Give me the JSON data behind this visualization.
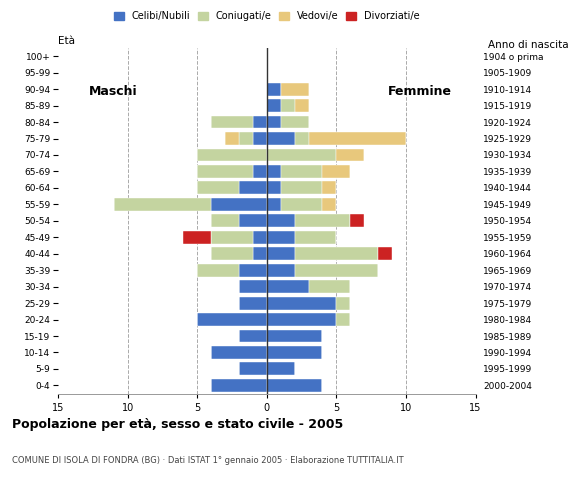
{
  "age_groups": [
    "0-4",
    "5-9",
    "10-14",
    "15-19",
    "20-24",
    "25-29",
    "30-34",
    "35-39",
    "40-44",
    "45-49",
    "50-54",
    "55-59",
    "60-64",
    "65-69",
    "70-74",
    "75-79",
    "80-84",
    "85-89",
    "90-94",
    "95-99",
    "100+"
  ],
  "birth_years": [
    "2000-2004",
    "1995-1999",
    "1990-1994",
    "1985-1989",
    "1980-1984",
    "1975-1979",
    "1970-1974",
    "1965-1969",
    "1960-1964",
    "1955-1959",
    "1950-1954",
    "1945-1949",
    "1940-1944",
    "1935-1939",
    "1930-1934",
    "1925-1929",
    "1920-1924",
    "1915-1919",
    "1910-1914",
    "1905-1909",
    "1904 o prima"
  ],
  "colors": {
    "celibi": "#4472c4",
    "coniugati": "#c4d4a0",
    "vedovi": "#e8c87c",
    "divorziati": "#cc2222"
  },
  "males": {
    "celibi": [
      4,
      2,
      4,
      2,
      5,
      2,
      2,
      2,
      1,
      1,
      2,
      4,
      2,
      1,
      0,
      1,
      1,
      0,
      0,
      0,
      0
    ],
    "coniugati": [
      0,
      0,
      0,
      0,
      0,
      0,
      0,
      3,
      3,
      3,
      2,
      7,
      3,
      4,
      5,
      1,
      3,
      0,
      0,
      0,
      0
    ],
    "vedovi": [
      0,
      0,
      0,
      0,
      0,
      0,
      0,
      0,
      0,
      0,
      0,
      0,
      0,
      0,
      0,
      1,
      0,
      0,
      0,
      0,
      0
    ],
    "divorziati": [
      0,
      0,
      0,
      0,
      0,
      0,
      0,
      0,
      0,
      2,
      0,
      0,
      0,
      0,
      0,
      0,
      0,
      0,
      0,
      0,
      0
    ]
  },
  "females": {
    "celibi": [
      4,
      2,
      4,
      4,
      5,
      5,
      3,
      2,
      2,
      2,
      2,
      1,
      1,
      1,
      0,
      2,
      1,
      1,
      1,
      0,
      0
    ],
    "coniugati": [
      0,
      0,
      0,
      0,
      1,
      1,
      3,
      6,
      6,
      3,
      4,
      3,
      3,
      3,
      5,
      1,
      2,
      1,
      0,
      0,
      0
    ],
    "vedovi": [
      0,
      0,
      0,
      0,
      0,
      0,
      0,
      0,
      0,
      0,
      0,
      1,
      1,
      2,
      2,
      7,
      0,
      1,
      2,
      0,
      0
    ],
    "divorziati": [
      0,
      0,
      0,
      0,
      0,
      0,
      0,
      0,
      1,
      0,
      1,
      0,
      0,
      0,
      0,
      0,
      0,
      0,
      0,
      0,
      0
    ]
  },
  "title": "Popolazione per età, sesso e stato civile - 2005",
  "subtitle": "COMUNE DI ISOLA DI FONDRA (BG) · Dati ISTAT 1° gennaio 2005 · Elaborazione TUTTITALIA.IT",
  "label_maschi": "Maschi",
  "label_femmine": "Femmine",
  "legend_labels": [
    "Celibi/Nubili",
    "Coniugati/e",
    "Vedovi/e",
    "Divorziati/e"
  ],
  "xlim": 15
}
